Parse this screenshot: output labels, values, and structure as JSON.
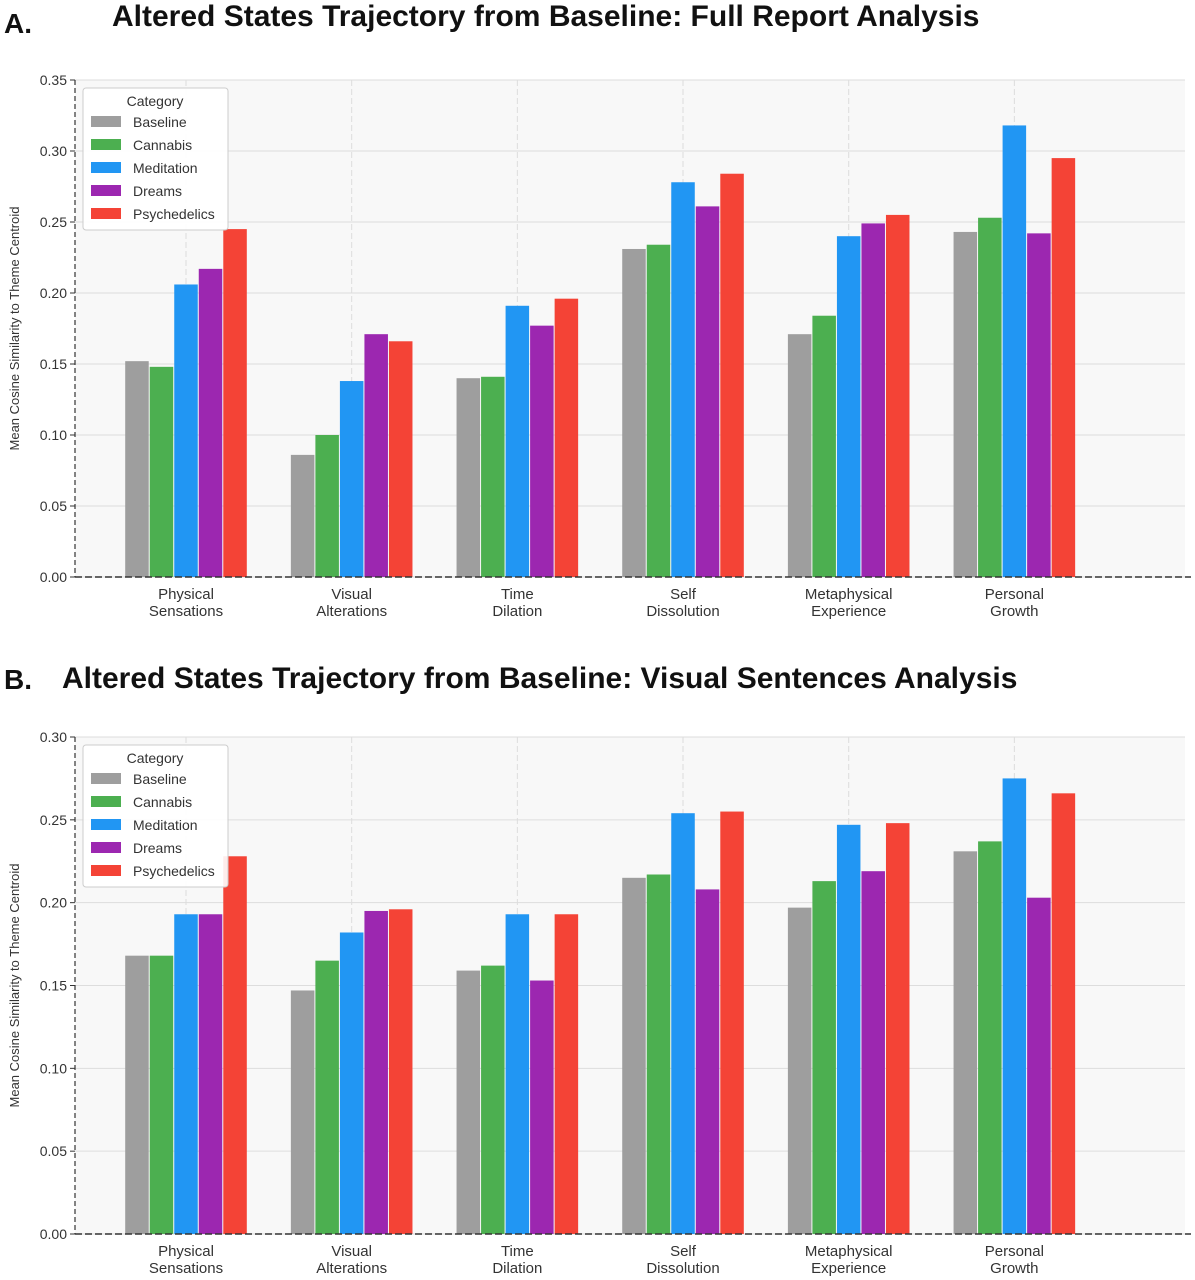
{
  "chart_data": [
    {
      "type": "bar",
      "panel_label": "A.",
      "title": "Altered States Trajectory from Baseline: Full Report Analysis",
      "xlabel": "",
      "ylabel": "Mean Cosine Similarity to Theme Centroid",
      "ylim": [
        0,
        0.35
      ],
      "yticks": [
        "0.00",
        "0.05",
        "0.10",
        "0.15",
        "0.20",
        "0.25",
        "0.30",
        "0.35"
      ],
      "grid": true,
      "legend_title": "Category",
      "legend_position": "top-left",
      "categories": [
        [
          "Physical",
          "Sensations"
        ],
        [
          "Visual",
          "Alterations"
        ],
        [
          "Time",
          "Dilation"
        ],
        [
          "Self",
          "Dissolution"
        ],
        [
          "Metaphysical",
          "Experience"
        ],
        [
          "Personal",
          "Growth"
        ]
      ],
      "series": [
        {
          "name": "Baseline",
          "color": "#9e9e9e",
          "values": [
            0.152,
            0.086,
            0.14,
            0.231,
            0.171,
            0.243
          ]
        },
        {
          "name": "Cannabis",
          "color": "#4caf50",
          "values": [
            0.148,
            0.1,
            0.141,
            0.234,
            0.184,
            0.253
          ]
        },
        {
          "name": "Meditation",
          "color": "#2196f3",
          "values": [
            0.206,
            0.138,
            0.191,
            0.278,
            0.24,
            0.318
          ]
        },
        {
          "name": "Dreams",
          "color": "#9c27b0",
          "values": [
            0.217,
            0.171,
            0.177,
            0.261,
            0.249,
            0.242
          ]
        },
        {
          "name": "Psychedelics",
          "color": "#f44336",
          "values": [
            0.245,
            0.166,
            0.196,
            0.284,
            0.255,
            0.295
          ]
        }
      ]
    },
    {
      "type": "bar",
      "panel_label": "B.",
      "title": "Altered States Trajectory from Baseline: Visual Sentences Analysis",
      "xlabel": "",
      "ylabel": "Mean Cosine Similarity to Theme Centroid",
      "ylim": [
        0,
        0.3
      ],
      "yticks": [
        "0.00",
        "0.05",
        "0.10",
        "0.15",
        "0.20",
        "0.25",
        "0.30"
      ],
      "grid": true,
      "legend_title": "Category",
      "legend_position": "top-left",
      "categories": [
        [
          "Physical",
          "Sensations"
        ],
        [
          "Visual",
          "Alterations"
        ],
        [
          "Time",
          "Dilation"
        ],
        [
          "Self",
          "Dissolution"
        ],
        [
          "Metaphysical",
          "Experience"
        ],
        [
          "Personal",
          "Growth"
        ]
      ],
      "series": [
        {
          "name": "Baseline",
          "color": "#9e9e9e",
          "values": [
            0.168,
            0.147,
            0.159,
            0.215,
            0.197,
            0.231
          ]
        },
        {
          "name": "Cannabis",
          "color": "#4caf50",
          "values": [
            0.168,
            0.165,
            0.162,
            0.217,
            0.213,
            0.237
          ]
        },
        {
          "name": "Meditation",
          "color": "#2196f3",
          "values": [
            0.193,
            0.182,
            0.193,
            0.254,
            0.247,
            0.275
          ]
        },
        {
          "name": "Dreams",
          "color": "#9c27b0",
          "values": [
            0.193,
            0.195,
            0.153,
            0.208,
            0.219,
            0.203
          ]
        },
        {
          "name": "Psychedelics",
          "color": "#f44336",
          "values": [
            0.228,
            0.196,
            0.193,
            0.255,
            0.248,
            0.266
          ]
        }
      ]
    }
  ]
}
